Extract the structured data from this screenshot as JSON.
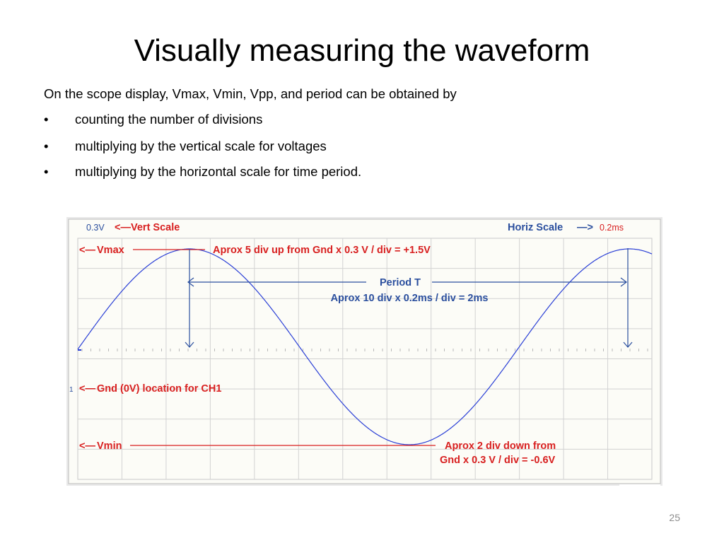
{
  "slide": {
    "title": "Visually measuring the waveform",
    "intro": "On the scope display, Vmax, Vmin, Vpp, and period can be obtained by",
    "bullet_glyph": "•",
    "bullets": [
      "counting the number of divisions",
      "multiplying by the vertical scale for voltages",
      "multiplying by the horizontal scale for time period."
    ],
    "slide_number": "25"
  },
  "scope": {
    "vert_scale_value": "0.3V",
    "vert_scale_label": "Vert Scale",
    "horiz_scale_label": "Horiz Scale",
    "horiz_scale_value": "0.2ms",
    "vmax_label": "Vmax",
    "vmax_note": "Aprox 5 div up from Gnd x 0.3 V / div = +1.5V",
    "period_label": "Period T",
    "period_note": "Aprox 10 div x 0.2ms / div = 2ms",
    "gnd_marker": "1",
    "gnd_label": "Gnd (0V) location for CH1",
    "vmin_label": "Vmin",
    "vmin_note_1": "Aprox 2 div down from",
    "vmin_note_2": "Gnd x 0.3 V / div = -0.6V",
    "colors": {
      "trace": "#2a3fd6",
      "annotation_red": "#d82020",
      "annotation_blue": "#2b4f9e",
      "grid": "#d2d2d2",
      "screen_bg": "#fcfcf7",
      "frame": "#e6e6e6"
    }
  }
}
